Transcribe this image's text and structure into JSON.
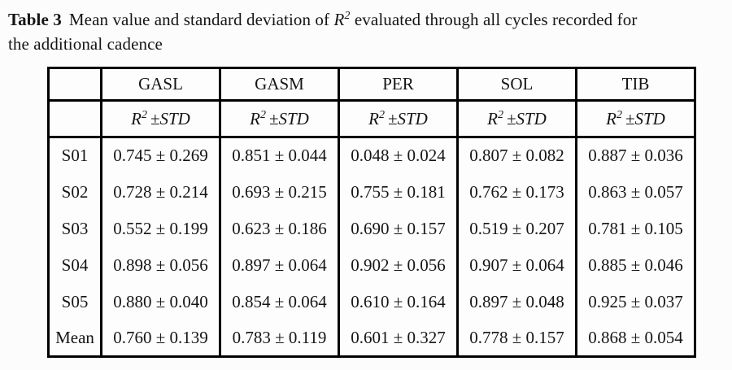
{
  "caption": {
    "label": "Table 3",
    "part1": "Mean value and standard deviation of",
    "r_base": "R",
    "r_sup": "2",
    "part2": "evaluated through all cycles recorded for",
    "line2": "the additional cadence"
  },
  "table": {
    "columns": [
      "GASL",
      "GASM",
      "PER",
      "SOL",
      "TIB"
    ],
    "subheader": {
      "base": "R",
      "sup": "2",
      "pm_std": "±STD"
    },
    "rows": [
      {
        "label": "S01",
        "values": [
          "0.745 ± 0.269",
          "0.851 ± 0.044",
          "0.048 ± 0.024",
          "0.807 ± 0.082",
          "0.887 ± 0.036"
        ]
      },
      {
        "label": "S02",
        "values": [
          "0.728 ± 0.214",
          "0.693 ± 0.215",
          "0.755 ± 0.181",
          "0.762 ± 0.173",
          "0.863 ± 0.057"
        ]
      },
      {
        "label": "S03",
        "values": [
          "0.552 ± 0.199",
          "0.623 ± 0.186",
          "0.690 ± 0.157",
          "0.519 ± 0.207",
          "0.781 ± 0.105"
        ]
      },
      {
        "label": "S04",
        "values": [
          "0.898 ± 0.056",
          "0.897 ± 0.064",
          "0.902 ± 0.056",
          "0.907 ± 0.064",
          "0.885 ± 0.046"
        ]
      },
      {
        "label": "S05",
        "values": [
          "0.880 ± 0.040",
          "0.854 ± 0.064",
          "0.610 ± 0.164",
          "0.897 ± 0.048",
          "0.925 ± 0.037"
        ]
      },
      {
        "label": "Mean",
        "values": [
          "0.760 ± 0.139",
          "0.783 ± 0.119",
          "0.601 ± 0.327",
          "0.778 ± 0.157",
          "0.868 ± 0.054"
        ]
      }
    ]
  },
  "colors": {
    "text": "#151515",
    "border": "#000000",
    "background": "#fcfcfc"
  }
}
